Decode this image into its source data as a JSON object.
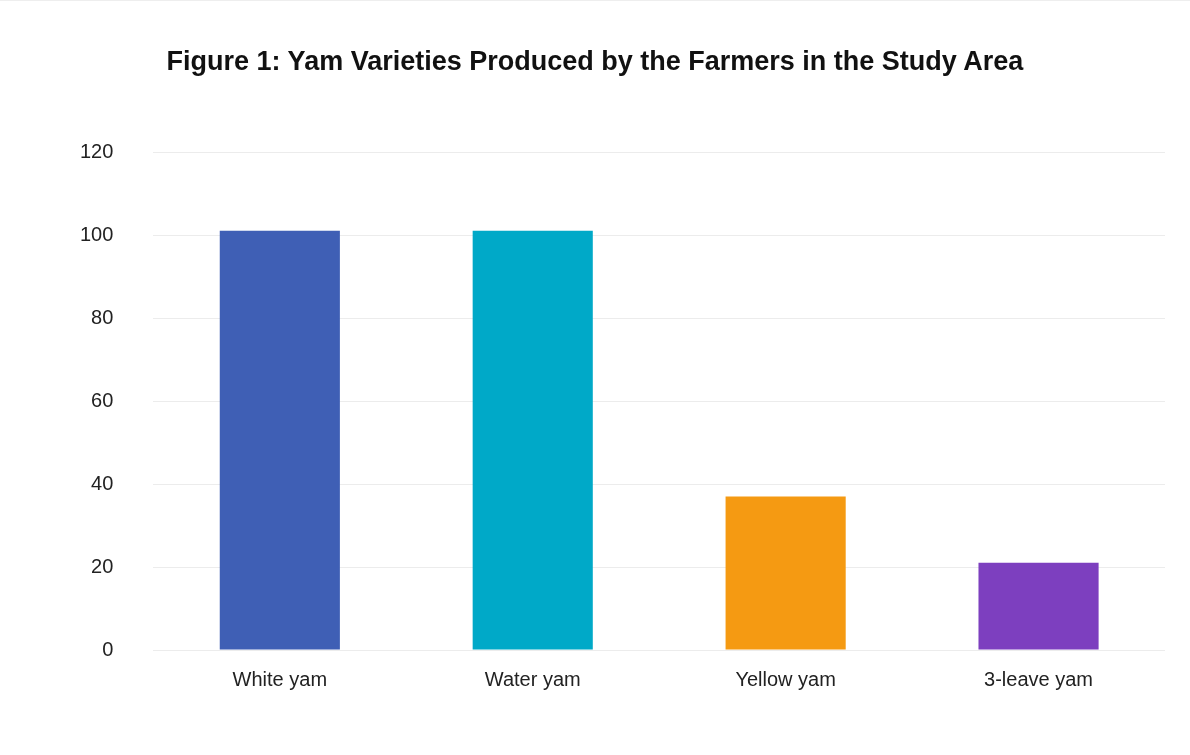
{
  "chart_data": {
    "type": "bar",
    "title": "Figure 1: Yam Varieties Produced by the Farmers in the Study Area",
    "categories": [
      "White yam",
      "Water yam",
      "Yellow yam",
      "3-leave yam"
    ],
    "values": [
      101,
      101,
      37,
      21
    ],
    "colors": [
      "#3f5fb5",
      "#00a9c8",
      "#f59a12",
      "#7d3fbf"
    ],
    "ylim": [
      0,
      120
    ],
    "yticks": [
      0,
      20,
      40,
      60,
      80,
      100,
      120
    ],
    "grid": "y",
    "legend": false
  }
}
